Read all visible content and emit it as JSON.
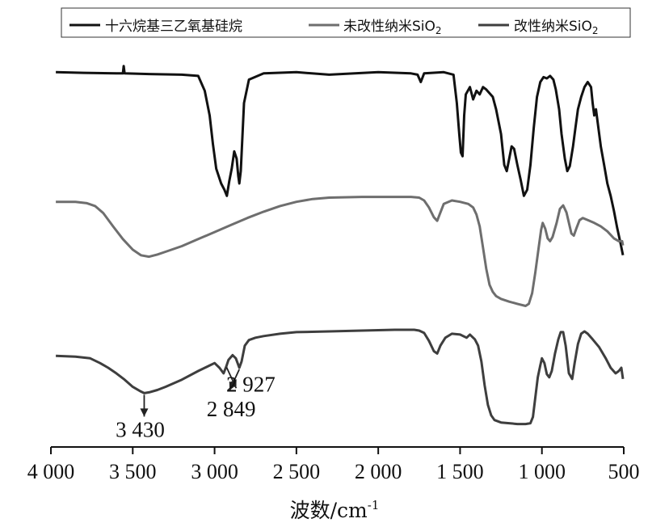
{
  "chart_data": {
    "type": "line",
    "xlabel": "波数/cm",
    "xlabel_sup": "-1",
    "xlim": [
      4000,
      500
    ],
    "xticks": [
      {
        "value": 4000,
        "label": "4 000"
      },
      {
        "value": 3500,
        "label": "3 500"
      },
      {
        "value": 3000,
        "label": "3 000"
      },
      {
        "value": 2500,
        "label": "2 500"
      },
      {
        "value": 2000,
        "label": "2 000"
      },
      {
        "value": 1500,
        "label": "1 500"
      },
      {
        "value": 1000,
        "label": "1 000"
      },
      {
        "value": 500,
        "label": "500"
      }
    ],
    "y_axis": "relative transmittance, offset traces, no ticks",
    "legend_position": "top",
    "series": [
      {
        "name": "十六烷基三乙氧基硅烷",
        "color": "#111111",
        "points": [
          [
            3970,
            0.1
          ],
          [
            3800,
            0.105
          ],
          [
            3600,
            0.11
          ],
          [
            3560,
            0.11
          ],
          [
            3555,
            0.05
          ],
          [
            3550,
            0.11
          ],
          [
            3400,
            0.115
          ],
          [
            3200,
            0.12
          ],
          [
            3100,
            0.13
          ],
          [
            3060,
            0.25
          ],
          [
            3030,
            0.45
          ],
          [
            3010,
            0.68
          ],
          [
            2990,
            0.88
          ],
          [
            2960,
            1.0
          ],
          [
            2940,
            1.05
          ],
          [
            2925,
            1.1
          ],
          [
            2910,
            0.98
          ],
          [
            2895,
            0.88
          ],
          [
            2880,
            0.74
          ],
          [
            2865,
            0.8
          ],
          [
            2855,
            0.94
          ],
          [
            2849,
            1.0
          ],
          [
            2840,
            0.9
          ],
          [
            2820,
            0.35
          ],
          [
            2790,
            0.16
          ],
          [
            2700,
            0.11
          ],
          [
            2500,
            0.1
          ],
          [
            2300,
            0.12
          ],
          [
            2000,
            0.1
          ],
          [
            1800,
            0.11
          ],
          [
            1760,
            0.12
          ],
          [
            1740,
            0.18
          ],
          [
            1720,
            0.11
          ],
          [
            1600,
            0.1
          ],
          [
            1540,
            0.12
          ],
          [
            1520,
            0.35
          ],
          [
            1505,
            0.6
          ],
          [
            1495,
            0.75
          ],
          [
            1485,
            0.78
          ],
          [
            1475,
            0.45
          ],
          [
            1465,
            0.28
          ],
          [
            1440,
            0.22
          ],
          [
            1420,
            0.32
          ],
          [
            1400,
            0.25
          ],
          [
            1380,
            0.28
          ],
          [
            1360,
            0.22
          ],
          [
            1340,
            0.24
          ],
          [
            1300,
            0.3
          ],
          [
            1280,
            0.4
          ],
          [
            1250,
            0.6
          ],
          [
            1230,
            0.85
          ],
          [
            1215,
            0.9
          ],
          [
            1200,
            0.8
          ],
          [
            1185,
            0.7
          ],
          [
            1170,
            0.72
          ],
          [
            1150,
            0.85
          ],
          [
            1130,
            0.97
          ],
          [
            1110,
            1.1
          ],
          [
            1090,
            1.05
          ],
          [
            1070,
            0.85
          ],
          [
            1050,
            0.55
          ],
          [
            1030,
            0.3
          ],
          [
            1010,
            0.18
          ],
          [
            990,
            0.14
          ],
          [
            970,
            0.15
          ],
          [
            950,
            0.13
          ],
          [
            930,
            0.16
          ],
          [
            915,
            0.24
          ],
          [
            895,
            0.4
          ],
          [
            880,
            0.6
          ],
          [
            860,
            0.8
          ],
          [
            845,
            0.9
          ],
          [
            830,
            0.86
          ],
          [
            810,
            0.7
          ],
          [
            795,
            0.55
          ],
          [
            780,
            0.4
          ],
          [
            760,
            0.3
          ],
          [
            740,
            0.22
          ],
          [
            720,
            0.18
          ],
          [
            700,
            0.22
          ],
          [
            690,
            0.35
          ],
          [
            680,
            0.45
          ],
          [
            670,
            0.4
          ],
          [
            655,
            0.55
          ],
          [
            640,
            0.7
          ],
          [
            620,
            0.85
          ],
          [
            600,
            1.0
          ],
          [
            580,
            1.1
          ],
          [
            560,
            1.22
          ],
          [
            540,
            1.36
          ],
          [
            520,
            1.48
          ],
          [
            505,
            1.58
          ]
        ]
      },
      {
        "name": "未改性纳米SiO2",
        "name_main": "未改性纳米SiO",
        "name_sub": "2",
        "color": "#6e6e6e",
        "points": [
          [
            3970,
            0.1
          ],
          [
            3850,
            0.1
          ],
          [
            3780,
            0.12
          ],
          [
            3730,
            0.16
          ],
          [
            3680,
            0.26
          ],
          [
            3620,
            0.45
          ],
          [
            3560,
            0.63
          ],
          [
            3500,
            0.78
          ],
          [
            3450,
            0.86
          ],
          [
            3400,
            0.88
          ],
          [
            3350,
            0.85
          ],
          [
            3300,
            0.81
          ],
          [
            3200,
            0.73
          ],
          [
            3100,
            0.63
          ],
          [
            3000,
            0.53
          ],
          [
            2900,
            0.43
          ],
          [
            2800,
            0.33
          ],
          [
            2700,
            0.24
          ],
          [
            2600,
            0.16
          ],
          [
            2500,
            0.1
          ],
          [
            2400,
            0.06
          ],
          [
            2300,
            0.04
          ],
          [
            2100,
            0.03
          ],
          [
            1900,
            0.03
          ],
          [
            1800,
            0.03
          ],
          [
            1750,
            0.04
          ],
          [
            1720,
            0.08
          ],
          [
            1690,
            0.18
          ],
          [
            1660,
            0.32
          ],
          [
            1640,
            0.37
          ],
          [
            1620,
            0.25
          ],
          [
            1600,
            0.13
          ],
          [
            1550,
            0.08
          ],
          [
            1500,
            0.1
          ],
          [
            1450,
            0.13
          ],
          [
            1420,
            0.18
          ],
          [
            1400,
            0.28
          ],
          [
            1380,
            0.45
          ],
          [
            1360,
            0.75
          ],
          [
            1340,
            1.05
          ],
          [
            1320,
            1.28
          ],
          [
            1300,
            1.38
          ],
          [
            1280,
            1.44
          ],
          [
            1250,
            1.48
          ],
          [
            1200,
            1.52
          ],
          [
            1150,
            1.55
          ],
          [
            1100,
            1.58
          ],
          [
            1080,
            1.55
          ],
          [
            1060,
            1.4
          ],
          [
            1040,
            1.1
          ],
          [
            1020,
            0.75
          ],
          [
            1005,
            0.5
          ],
          [
            995,
            0.4
          ],
          [
            980,
            0.48
          ],
          [
            965,
            0.62
          ],
          [
            950,
            0.66
          ],
          [
            935,
            0.6
          ],
          [
            910,
            0.4
          ],
          [
            890,
            0.2
          ],
          [
            870,
            0.15
          ],
          [
            850,
            0.25
          ],
          [
            820,
            0.55
          ],
          [
            805,
            0.58
          ],
          [
            790,
            0.48
          ],
          [
            770,
            0.36
          ],
          [
            750,
            0.33
          ],
          [
            720,
            0.36
          ],
          [
            680,
            0.4
          ],
          [
            640,
            0.45
          ],
          [
            600,
            0.52
          ],
          [
            560,
            0.62
          ],
          [
            530,
            0.66
          ],
          [
            510,
            0.66
          ],
          [
            505,
            0.72
          ]
        ]
      },
      {
        "name": "改性纳米SiO2",
        "name_main": "改性纳米SiO",
        "name_sub": "2",
        "color": "#3e3e3e",
        "points": [
          [
            3970,
            0.33
          ],
          [
            3850,
            0.34
          ],
          [
            3760,
            0.36
          ],
          [
            3700,
            0.42
          ],
          [
            3650,
            0.48
          ],
          [
            3600,
            0.55
          ],
          [
            3550,
            0.63
          ],
          [
            3500,
            0.72
          ],
          [
            3450,
            0.78
          ],
          [
            3430,
            0.8
          ],
          [
            3400,
            0.79
          ],
          [
            3350,
            0.76
          ],
          [
            3300,
            0.72
          ],
          [
            3200,
            0.63
          ],
          [
            3100,
            0.52
          ],
          [
            3030,
            0.45
          ],
          [
            3000,
            0.42
          ],
          [
            2970,
            0.48
          ],
          [
            2945,
            0.55
          ],
          [
            2930,
            0.47
          ],
          [
            2915,
            0.38
          ],
          [
            2890,
            0.32
          ],
          [
            2870,
            0.36
          ],
          [
            2849,
            0.48
          ],
          [
            2835,
            0.4
          ],
          [
            2815,
            0.2
          ],
          [
            2790,
            0.13
          ],
          [
            2750,
            0.1
          ],
          [
            2700,
            0.08
          ],
          [
            2600,
            0.05
          ],
          [
            2500,
            0.03
          ],
          [
            2300,
            0.02
          ],
          [
            2100,
            0.01
          ],
          [
            1900,
            0.0
          ],
          [
            1780,
            0.0
          ],
          [
            1750,
            0.01
          ],
          [
            1720,
            0.04
          ],
          [
            1690,
            0.14
          ],
          [
            1660,
            0.27
          ],
          [
            1640,
            0.3
          ],
          [
            1620,
            0.2
          ],
          [
            1590,
            0.1
          ],
          [
            1550,
            0.05
          ],
          [
            1500,
            0.06
          ],
          [
            1460,
            0.1
          ],
          [
            1440,
            0.06
          ],
          [
            1410,
            0.12
          ],
          [
            1390,
            0.2
          ],
          [
            1370,
            0.4
          ],
          [
            1350,
            0.7
          ],
          [
            1330,
            0.95
          ],
          [
            1310,
            1.08
          ],
          [
            1290,
            1.14
          ],
          [
            1250,
            1.17
          ],
          [
            1200,
            1.18
          ],
          [
            1150,
            1.19
          ],
          [
            1100,
            1.19
          ],
          [
            1070,
            1.18
          ],
          [
            1055,
            1.1
          ],
          [
            1040,
            0.85
          ],
          [
            1025,
            0.6
          ],
          [
            1010,
            0.45
          ],
          [
            1000,
            0.36
          ],
          [
            985,
            0.42
          ],
          [
            970,
            0.56
          ],
          [
            955,
            0.6
          ],
          [
            940,
            0.52
          ],
          [
            920,
            0.3
          ],
          [
            900,
            0.12
          ],
          [
            885,
            0.03
          ],
          [
            870,
            0.03
          ],
          [
            855,
            0.2
          ],
          [
            835,
            0.55
          ],
          [
            815,
            0.62
          ],
          [
            800,
            0.42
          ],
          [
            780,
            0.18
          ],
          [
            760,
            0.05
          ],
          [
            740,
            0.02
          ],
          [
            720,
            0.05
          ],
          [
            690,
            0.12
          ],
          [
            650,
            0.22
          ],
          [
            610,
            0.36
          ],
          [
            580,
            0.48
          ],
          [
            550,
            0.55
          ],
          [
            530,
            0.52
          ],
          [
            515,
            0.48
          ],
          [
            505,
            0.62
          ]
        ]
      }
    ],
    "annotations": [
      {
        "label": "3 430",
        "x": 3430,
        "series": 2
      },
      {
        "label": "2 849",
        "x": 2849,
        "series": 2
      },
      {
        "label": "2 927",
        "x": 2927,
        "series": 2
      }
    ]
  }
}
